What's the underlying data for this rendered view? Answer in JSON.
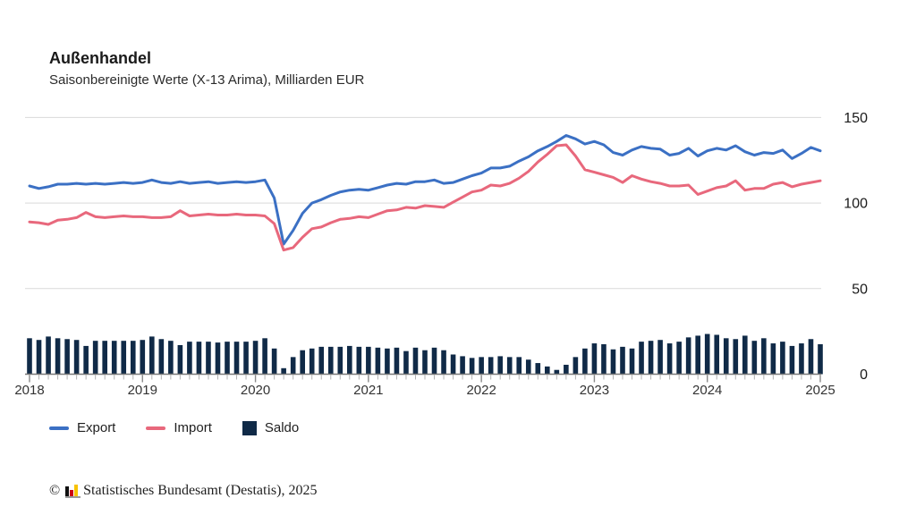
{
  "header": {
    "title": "Außenhandel",
    "subtitle": "Saisonbereinigte Werte (X-13 Arima), Milliarden EUR"
  },
  "chart_data": {
    "type": "line+bar",
    "title": "Außenhandel",
    "subtitle": "Saisonbereinigte Werte (X-13 Arima), Milliarden EUR",
    "unit": "Milliarden EUR",
    "grid": true,
    "legend_position": "bottom",
    "y_axis_side": "right",
    "ylim": [
      0,
      150
    ],
    "y_ticks": [
      0,
      50,
      100,
      150
    ],
    "x_tick_labels": [
      "2018",
      "2019",
      "2020",
      "2021",
      "2022",
      "2023",
      "2024",
      "2025"
    ],
    "months": [
      "2018-01",
      "2018-02",
      "2018-03",
      "2018-04",
      "2018-05",
      "2018-06",
      "2018-07",
      "2018-08",
      "2018-09",
      "2018-10",
      "2018-11",
      "2018-12",
      "2019-01",
      "2019-02",
      "2019-03",
      "2019-04",
      "2019-05",
      "2019-06",
      "2019-07",
      "2019-08",
      "2019-09",
      "2019-10",
      "2019-11",
      "2019-12",
      "2020-01",
      "2020-02",
      "2020-03",
      "2020-04",
      "2020-05",
      "2020-06",
      "2020-07",
      "2020-08",
      "2020-09",
      "2020-10",
      "2020-11",
      "2020-12",
      "2021-01",
      "2021-02",
      "2021-03",
      "2021-04",
      "2021-05",
      "2021-06",
      "2021-07",
      "2021-08",
      "2021-09",
      "2021-10",
      "2021-11",
      "2021-12",
      "2022-01",
      "2022-02",
      "2022-03",
      "2022-04",
      "2022-05",
      "2022-06",
      "2022-07",
      "2022-08",
      "2022-09",
      "2022-10",
      "2022-11",
      "2022-12",
      "2023-01",
      "2023-02",
      "2023-03",
      "2023-04",
      "2023-05",
      "2023-06",
      "2023-07",
      "2023-08",
      "2023-09",
      "2023-10",
      "2023-11",
      "2023-12",
      "2024-01",
      "2024-02",
      "2024-03",
      "2024-04",
      "2024-05",
      "2024-06",
      "2024-07",
      "2024-08",
      "2024-09",
      "2024-10",
      "2024-11",
      "2024-12",
      "2025-01"
    ],
    "series": [
      {
        "name": "Export",
        "type": "line",
        "color": "#3b70c4",
        "values": [
          110,
          108.5,
          109.5,
          111,
          111,
          111.5,
          111,
          111.5,
          111,
          111.5,
          112,
          111.5,
          112,
          113.5,
          112,
          111.5,
          112.5,
          111.5,
          112,
          112.5,
          111.5,
          112,
          112.5,
          112,
          112.5,
          113.5,
          103,
          76,
          84,
          94,
          100,
          102,
          104.5,
          106.5,
          107.5,
          108,
          107.5,
          109,
          110.5,
          111.5,
          111,
          112.5,
          112.5,
          113.5,
          111.5,
          112,
          114,
          116,
          117.5,
          120.5,
          120.5,
          121.5,
          124.5,
          127,
          130.5,
          133,
          136,
          139.5,
          137.5,
          134.5,
          136,
          134,
          129.5,
          128,
          131,
          133,
          132,
          131.5,
          128,
          129,
          132,
          127.5,
          130.5,
          132,
          131,
          133.5,
          130,
          128,
          129.5,
          129,
          131,
          126,
          129,
          132.5,
          130.5
        ]
      },
      {
        "name": "Import",
        "type": "line",
        "color": "#e8687c",
        "values": [
          89,
          88.5,
          87.5,
          90,
          90.5,
          91.5,
          94.5,
          92,
          91.5,
          92,
          92.5,
          92,
          92,
          91.5,
          91.5,
          92,
          95.5,
          92.5,
          93,
          93.5,
          93,
          93,
          93.5,
          93,
          93,
          92.5,
          88,
          72.5,
          74,
          80,
          85,
          86,
          88.5,
          90.5,
          91,
          92,
          91.5,
          93.5,
          95.5,
          96,
          97.5,
          97,
          98.5,
          98,
          97.5,
          100.5,
          103.5,
          106.5,
          107.5,
          110.5,
          110,
          111.5,
          114.5,
          118.5,
          124,
          128.5,
          133.5,
          134,
          127.5,
          119.5,
          118,
          116.5,
          115,
          112,
          116,
          114,
          112.5,
          111.5,
          110,
          110,
          110.5,
          105,
          107,
          109,
          110,
          113,
          107.5,
          108.5,
          108.5,
          111,
          112,
          109.5,
          111,
          112,
          113
        ]
      },
      {
        "name": "Saldo",
        "type": "bar",
        "color": "#102a47",
        "values": [
          21,
          20,
          22,
          21,
          20.5,
          20,
          16.5,
          19.5,
          19.5,
          19.5,
          19.5,
          19.5,
          20,
          22,
          20.5,
          19.5,
          17,
          19,
          19,
          19,
          18.5,
          19,
          19,
          19,
          19.5,
          21,
          15,
          3.5,
          10,
          14,
          15,
          16,
          16,
          16,
          16.5,
          16,
          16,
          15.5,
          15,
          15.5,
          13.5,
          15.5,
          14,
          15.5,
          14,
          11.5,
          10.5,
          9.5,
          10,
          10,
          10.5,
          10,
          10,
          8.5,
          6.5,
          4.5,
          2.5,
          5.5,
          10,
          15,
          18,
          17.5,
          14.5,
          16,
          15,
          19,
          19.5,
          20,
          18,
          19,
          21.5,
          22.5,
          23.5,
          23,
          21,
          20.5,
          22.5,
          19.5,
          21,
          18,
          19,
          16.5,
          18,
          20.5,
          17.5
        ]
      }
    ],
    "colors": {
      "grid": "#d9d9d9",
      "axis": "#787878",
      "tick_minor": "#b3b3b3",
      "tick_major": "#8a8a8a",
      "tick_label": "#333333",
      "y_label": "#1a1a1a"
    }
  },
  "legend": {
    "export_label": "Export",
    "import_label": "Import",
    "saldo_label": "Saldo"
  },
  "footer": {
    "copyright": "©",
    "logo_name": "destatis-bar-chart-logo",
    "source": "Statistisches Bundesamt (Destatis), 2025"
  }
}
